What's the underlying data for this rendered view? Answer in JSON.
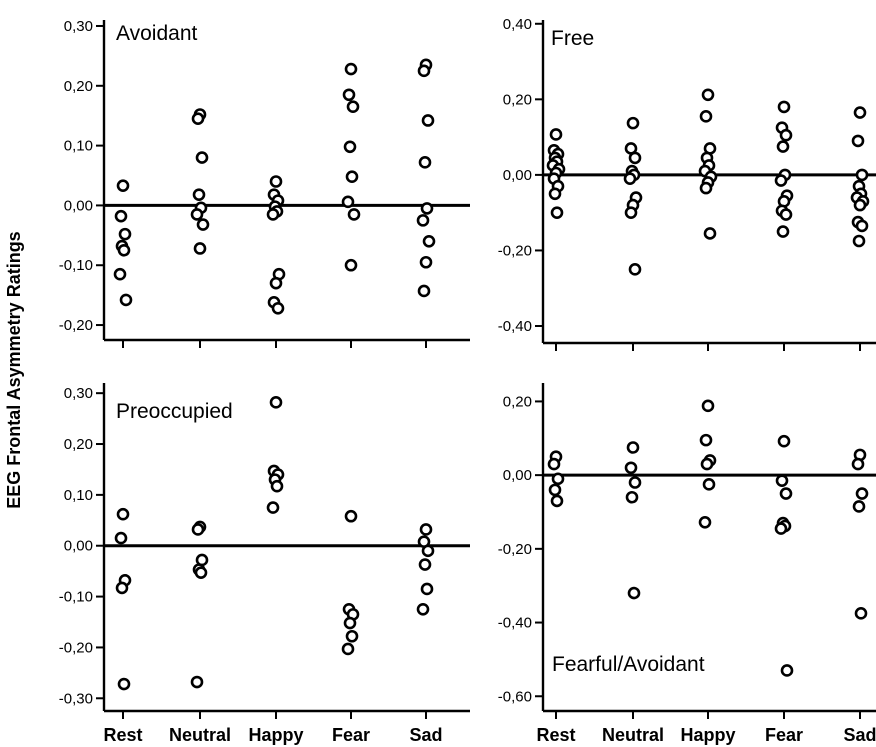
{
  "figure": {
    "ylabel": "EEG Frontal Asymmetry Ratings"
  },
  "chart_data": [
    {
      "type": "scatter",
      "title": "Avoidant",
      "xlabel": "",
      "ylabel": "EEG Frontal Asymmetry Ratings",
      "categories": [
        "Rest",
        "Neutral",
        "Happy",
        "Fear",
        "Sad"
      ],
      "yticks": [
        0.3,
        0.2,
        0.1,
        0.0,
        -0.1,
        -0.2
      ],
      "ytick_labels": [
        "0,30",
        "0,20",
        "0,10",
        "0,00",
        "-0,10",
        "-0,20"
      ],
      "ylim": [
        -0.225,
        0.31
      ],
      "reference_line": 0,
      "grid": false,
      "points": [
        [
          0.033,
          -0.018,
          -0.048,
          -0.068,
          -0.075,
          -0.115,
          -0.158
        ],
        [
          0.152,
          0.145,
          0.08,
          0.018,
          -0.004,
          -0.015,
          -0.032,
          -0.072
        ],
        [
          0.04,
          0.018,
          0.008,
          -0.002,
          -0.01,
          -0.015,
          -0.115,
          -0.13,
          -0.162,
          -0.172
        ],
        [
          0.228,
          0.185,
          0.165,
          0.098,
          0.048,
          0.006,
          -0.015,
          -0.1
        ],
        [
          0.235,
          0.225,
          0.142,
          0.072,
          -0.005,
          -0.025,
          -0.06,
          -0.095,
          -0.143
        ]
      ]
    },
    {
      "type": "scatter",
      "title": "Free",
      "xlabel": "",
      "ylabel": "",
      "categories": [
        "Rest",
        "Neutral",
        "Happy",
        "Fear",
        "Sad"
      ],
      "yticks": [
        0.4,
        0.2,
        0.0,
        -0.2,
        -0.4
      ],
      "ytick_labels": [
        "0,40",
        "0,20",
        "0,00",
        "-0,20",
        "-0,40"
      ],
      "ylim": [
        -0.445,
        0.41
      ],
      "reference_line": 0,
      "grid": false,
      "points": [
        [
          0.107,
          0.065,
          0.055,
          0.045,
          0.035,
          0.025,
          0.015,
          0.005,
          -0.01,
          -0.03,
          -0.05,
          -0.1
        ],
        [
          0.137,
          0.07,
          0.045,
          0.01,
          0.0,
          -0.01,
          -0.06,
          -0.08,
          -0.1,
          -0.25
        ],
        [
          0.212,
          0.155,
          0.07,
          0.045,
          0.025,
          0.01,
          -0.005,
          -0.02,
          -0.035,
          -0.155
        ],
        [
          0.18,
          0.125,
          0.105,
          0.075,
          0.0,
          -0.015,
          -0.055,
          -0.07,
          -0.095,
          -0.105,
          -0.15
        ],
        [
          0.165,
          0.09,
          0.0,
          -0.03,
          -0.05,
          -0.06,
          -0.07,
          -0.08,
          -0.125,
          -0.135,
          -0.175
        ]
      ]
    },
    {
      "type": "scatter",
      "title": "Preoccupied",
      "xlabel": "",
      "ylabel": "EEG Frontal Asymmetry Ratings",
      "categories": [
        "Rest",
        "Neutral",
        "Happy",
        "Fear",
        "Sad"
      ],
      "yticks": [
        0.3,
        0.2,
        0.1,
        0.0,
        -0.1,
        -0.2,
        -0.3
      ],
      "ytick_labels": [
        "0,30",
        "0,20",
        "0,10",
        "0,00",
        "-0,10",
        "-0,20",
        "-0,30"
      ],
      "ylim": [
        -0.325,
        0.32
      ],
      "reference_line": 0,
      "grid": false,
      "points": [
        [
          0.062,
          0.015,
          -0.068,
          -0.083,
          -0.272
        ],
        [
          0.037,
          0.032,
          -0.028,
          -0.047,
          -0.053,
          -0.268
        ],
        [
          0.282,
          0.147,
          0.14,
          0.13,
          0.117,
          0.075
        ],
        [
          0.058,
          -0.125,
          -0.135,
          -0.152,
          -0.178,
          -0.203
        ],
        [
          0.032,
          0.008,
          -0.01,
          -0.037,
          -0.085,
          -0.125
        ]
      ]
    },
    {
      "type": "scatter",
      "title": "Fearful/Avoidant",
      "xlabel": "",
      "ylabel": "",
      "categories": [
        "Rest",
        "Neutral",
        "Happy",
        "Fear",
        "Sad"
      ],
      "yticks": [
        0.2,
        0.0,
        -0.2,
        -0.4,
        -0.6
      ],
      "ytick_labels": [
        "0,20",
        "0,00",
        "-0,20",
        "-0,40",
        "-0,60"
      ],
      "ylim": [
        -0.64,
        0.25
      ],
      "reference_line": 0,
      "grid": false,
      "points": [
        [
          0.05,
          0.03,
          -0.01,
          -0.04,
          -0.07
        ],
        [
          0.075,
          0.02,
          -0.02,
          -0.06,
          -0.32
        ],
        [
          0.188,
          0.095,
          0.04,
          0.03,
          -0.025,
          -0.128
        ],
        [
          0.092,
          -0.015,
          -0.05,
          -0.13,
          -0.138,
          -0.145,
          -0.53
        ],
        [
          0.055,
          0.03,
          -0.05,
          -0.085,
          -0.375
        ]
      ]
    }
  ]
}
